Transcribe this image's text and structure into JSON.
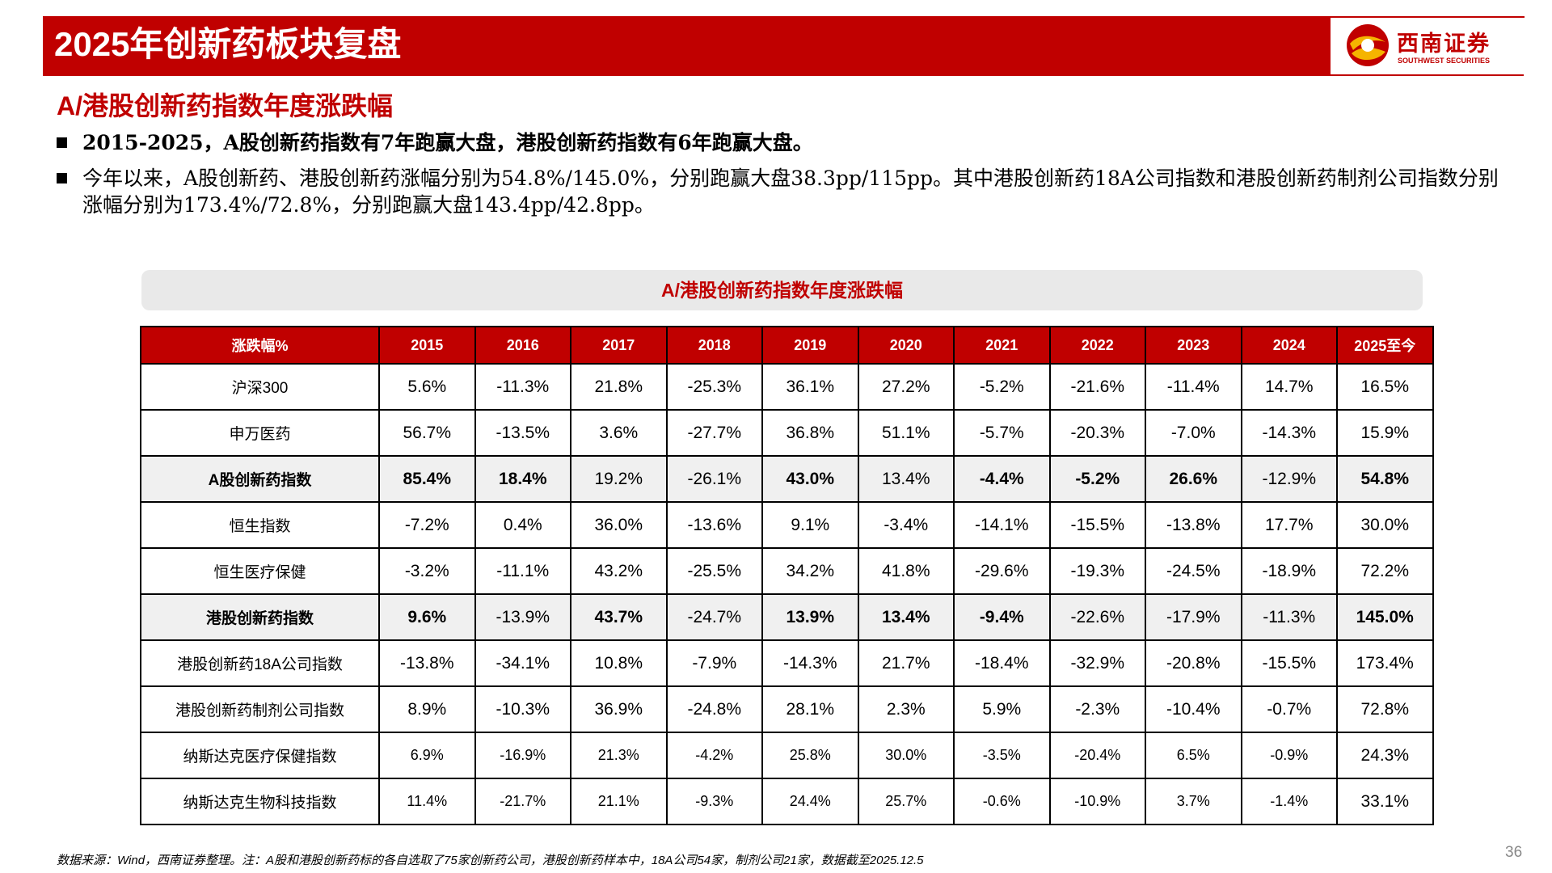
{
  "header": {
    "title": "2025年创新药板块复盘",
    "logo_name": "西南证券",
    "logo_en": "SOUTHWEST SECURITIES",
    "brand_color": "#c00000",
    "logo_icon": "southwest-securities-logo-icon"
  },
  "section": {
    "title": "A/港股创新药指数年度涨跌幅"
  },
  "bullets": [
    "2015-2025，A股创新药指数有7年跑赢大盘，港股创新药指数有6年跑赢大盘。",
    "今年以来，A股创新药、港股创新药涨幅分别为54.8%/145.0%，分别跑赢大盘38.3pp/115pp。其中港股创新药18A公司指数和港股创新药制剂公司指数分别涨幅分别为173.4%/72.8%，分别跑赢大盘143.4pp/42.8pp。"
  ],
  "table": {
    "caption": "A/港股创新药指数年度涨跌幅",
    "headers": [
      "涨跌幅%",
      "2015",
      "2016",
      "2017",
      "2018",
      "2019",
      "2020",
      "2021",
      "2022",
      "2023",
      "2024",
      "2025至今"
    ],
    "rows": [
      {
        "label": "沪深300",
        "values": [
          "5.6%",
          "-11.3%",
          "21.8%",
          "-25.3%",
          "36.1%",
          "27.2%",
          "-5.2%",
          "-21.6%",
          "-11.4%",
          "14.7%",
          "16.5%"
        ]
      },
      {
        "label": "申万医药",
        "values": [
          "56.7%",
          "-13.5%",
          "3.6%",
          "-27.7%",
          "36.8%",
          "51.1%",
          "-5.7%",
          "-20.3%",
          "-7.0%",
          "-14.3%",
          "15.9%"
        ]
      },
      {
        "label": "A股创新药指数",
        "values": [
          "85.4%",
          "18.4%",
          "19.2%",
          "-26.1%",
          "43.0%",
          "13.4%",
          "-4.4%",
          "-5.2%",
          "26.6%",
          "-12.9%",
          "54.8%"
        ]
      },
      {
        "label": "恒生指数",
        "values": [
          "-7.2%",
          "0.4%",
          "36.0%",
          "-13.6%",
          "9.1%",
          "-3.4%",
          "-14.1%",
          "-15.5%",
          "-13.8%",
          "17.7%",
          "30.0%"
        ]
      },
      {
        "label": "恒生医疗保健",
        "values": [
          "-3.2%",
          "-11.1%",
          "43.2%",
          "-25.5%",
          "34.2%",
          "41.8%",
          "-29.6%",
          "-19.3%",
          "-24.5%",
          "-18.9%",
          "72.2%"
        ]
      },
      {
        "label": "港股创新药指数",
        "values": [
          "9.6%",
          "-13.9%",
          "43.7%",
          "-24.7%",
          "13.9%",
          "13.4%",
          "-9.4%",
          "-22.6%",
          "-17.9%",
          "-11.3%",
          "145.0%"
        ]
      },
      {
        "label": "港股创新药18A公司指数",
        "values": [
          "-13.8%",
          "-34.1%",
          "10.8%",
          "-7.9%",
          "-14.3%",
          "21.7%",
          "-18.4%",
          "-32.9%",
          "-20.8%",
          "-15.5%",
          "173.4%"
        ]
      },
      {
        "label": "港股创新药制剂公司指数",
        "values": [
          "8.9%",
          "-10.3%",
          "36.9%",
          "-24.8%",
          "28.1%",
          "2.3%",
          "5.9%",
          "-2.3%",
          "-10.4%",
          "-0.7%",
          "72.8%"
        ]
      },
      {
        "label": "纳斯达克医疗保健指数",
        "values": [
          "6.9%",
          "-16.9%",
          "21.3%",
          "-4.2%",
          "25.8%",
          "30.0%",
          "-3.5%",
          "-20.4%",
          "6.5%",
          "-0.9%",
          "24.3%"
        ]
      },
      {
        "label": "纳斯达克生物科技指数",
        "values": [
          "11.4%",
          "-21.7%",
          "21.1%",
          "-9.3%",
          "24.4%",
          "25.7%",
          "-0.6%",
          "-10.9%",
          "3.7%",
          "-1.4%",
          "33.1%"
        ]
      }
    ]
  },
  "footnote": "数据来源：Wind，西南证券整理。注：A股和港股创新药标的各自选取了75家创新药公司，港股创新药样本中，18A公司54家，制剂公司21家，数据截至2025.12.5",
  "page_number": "36"
}
